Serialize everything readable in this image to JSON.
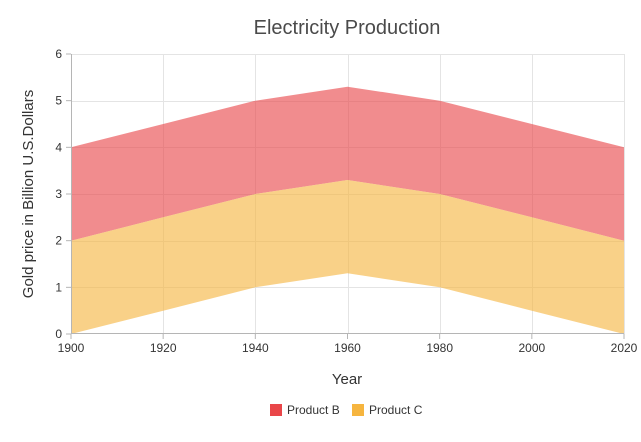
{
  "chart_data": {
    "type": "area",
    "title": "Electricity Production",
    "xlabel": "Year",
    "ylabel": "Gold price in Billion U.S.Dollars",
    "x": [
      1900,
      1920,
      1940,
      1960,
      1980,
      2000,
      2020
    ],
    "xlim": [
      1900,
      2020
    ],
    "ylim": [
      0,
      6
    ],
    "xticks": [
      "1900",
      "1920",
      "1940",
      "1960",
      "1980",
      "2000",
      "2020"
    ],
    "yticks": [
      "0",
      "1",
      "2",
      "3",
      "4",
      "5",
      "6"
    ],
    "grid": true,
    "legend_position": "bottom-center",
    "series": [
      {
        "name": "Product B",
        "color": "#e94649",
        "upper": [
          4,
          4.5,
          5,
          5.3,
          5,
          4.5,
          4
        ],
        "lower": [
          2,
          2.5,
          3,
          3.3,
          3,
          2.5,
          2
        ]
      },
      {
        "name": "Product C",
        "color": "#f6b53f",
        "upper": [
          2,
          2.5,
          3,
          3.3,
          3,
          2.5,
          2
        ],
        "lower": [
          0,
          0.5,
          1,
          1.3,
          1,
          0.5,
          0
        ]
      }
    ]
  }
}
